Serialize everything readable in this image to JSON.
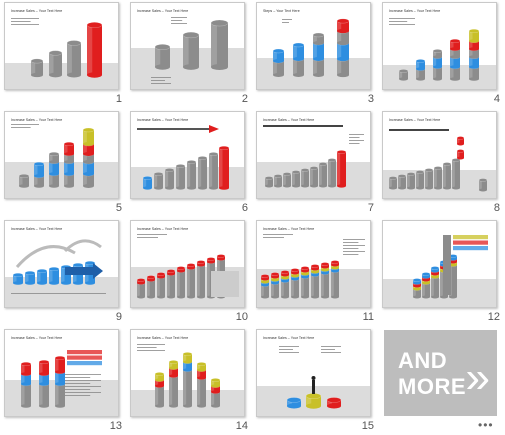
{
  "slides": [
    {
      "number": "1",
      "title": "Increase Sales – Your Text Here",
      "accent": "#e01e1e"
    },
    {
      "number": "2",
      "title": "Increase Sales – Your Text Here",
      "accent": "#9a9a9a"
    },
    {
      "number": "3",
      "title": "Steps – Your Text Here",
      "accent": "#e01e1e"
    },
    {
      "number": "4",
      "title": "Increase Sales – Your Text Here",
      "accent": "#c8c028"
    },
    {
      "number": "5",
      "title": "Increase Sales – Your Text Here",
      "accent": "#c8c028"
    },
    {
      "number": "6",
      "title": "Increase Sales – Your Text Here",
      "accent": "#e01e1e"
    },
    {
      "number": "7",
      "title": "Increase Sales – Your Text Here",
      "accent": "#e01e1e"
    },
    {
      "number": "8",
      "title": "Increase Sales – Your Text Here",
      "accent": "#e01e1e"
    },
    {
      "number": "9",
      "title": "Increase Sales – Your Text Here",
      "accent": "#3d8ed8"
    },
    {
      "number": "10",
      "title": "Increase Sales – Your Text Here",
      "accent": "#e01e1e"
    },
    {
      "number": "11",
      "title": "Increase Sales – Your Text Here",
      "accent": "#e01e1e"
    },
    {
      "number": "12",
      "title": "",
      "accent": "#e01e1e"
    },
    {
      "number": "13",
      "title": "Increase Sales – Your Text Here",
      "accent": "#e01e1e"
    },
    {
      "number": "14",
      "title": "Increase Sales – Your Text Here",
      "accent": "#c8c028"
    },
    {
      "number": "15",
      "title": "Increase Sales – Your Text Here",
      "accent": "#c8c028"
    }
  ],
  "more_tile": {
    "line1": "AND",
    "line2": "MORE",
    "chevron_icon": "double-chevron-right-icon"
  },
  "more_menu": {
    "label": "•••",
    "icon": "more-dots-icon"
  },
  "colors": {
    "red": "#e01e1e",
    "blue": "#2e8ee0",
    "yellow": "#c8c028",
    "gray": "#8c8c8c"
  }
}
